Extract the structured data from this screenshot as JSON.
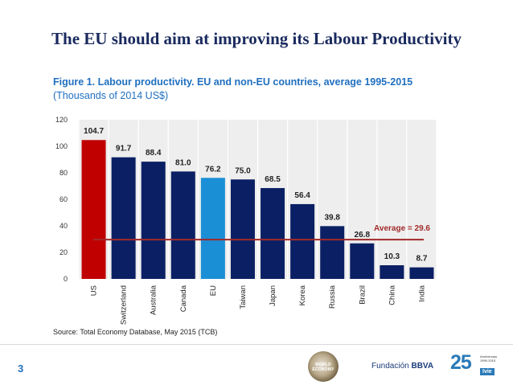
{
  "slide": {
    "title": "The EU should aim at improving its Labour Productivity",
    "page_number": "3",
    "source": "Source: Total Economy Database, May 2015 (TCB)"
  },
  "logos": {
    "world_economy": "WORLD ECONOMY",
    "fundacion": "Fundación",
    "bbva": "BBVA",
    "anniversary": "25",
    "anniversary_note": "Anniversary 1990-2015",
    "ivie": "Ivie"
  },
  "colors": {
    "us": "#c00000",
    "eu": "#1b8fd6",
    "other": "#0b2064",
    "average_line": "#a12a2a",
    "plot_bg": "#eeeeee"
  },
  "chart_data": {
    "type": "bar",
    "title": "Figure 1. Labour productivity. EU and non-EU countries, average 1995-2015",
    "subtitle": "(Thousands of 2014 US$)",
    "xlabel": "",
    "ylabel": "",
    "categories": [
      "US",
      "Switzerland",
      "Australia",
      "Canada",
      "EU",
      "Taiwan",
      "Japan",
      "Korea",
      "Russia",
      "Brazil",
      "China",
      "India"
    ],
    "values": [
      104.7,
      91.7,
      88.4,
      81.0,
      76.2,
      75.0,
      68.5,
      56.4,
      39.8,
      26.8,
      10.3,
      8.7
    ],
    "value_labels": [
      "104.7",
      "91.7",
      "88.4",
      "81.0",
      "76.2",
      "75.0",
      "68.5",
      "56.4",
      "39.8",
      "26.8",
      "10.3",
      "8.7"
    ],
    "highlight": {
      "US": "us",
      "EU": "eu"
    },
    "ylim": [
      0,
      120
    ],
    "yticks": [
      0,
      20,
      40,
      60,
      80,
      100,
      120
    ],
    "ytick_labels": [
      "0",
      "20",
      "40",
      "60",
      "80",
      "100",
      "120"
    ],
    "grid": "vertical",
    "average": {
      "value": 29.6,
      "label": "Average = 29.6"
    }
  }
}
